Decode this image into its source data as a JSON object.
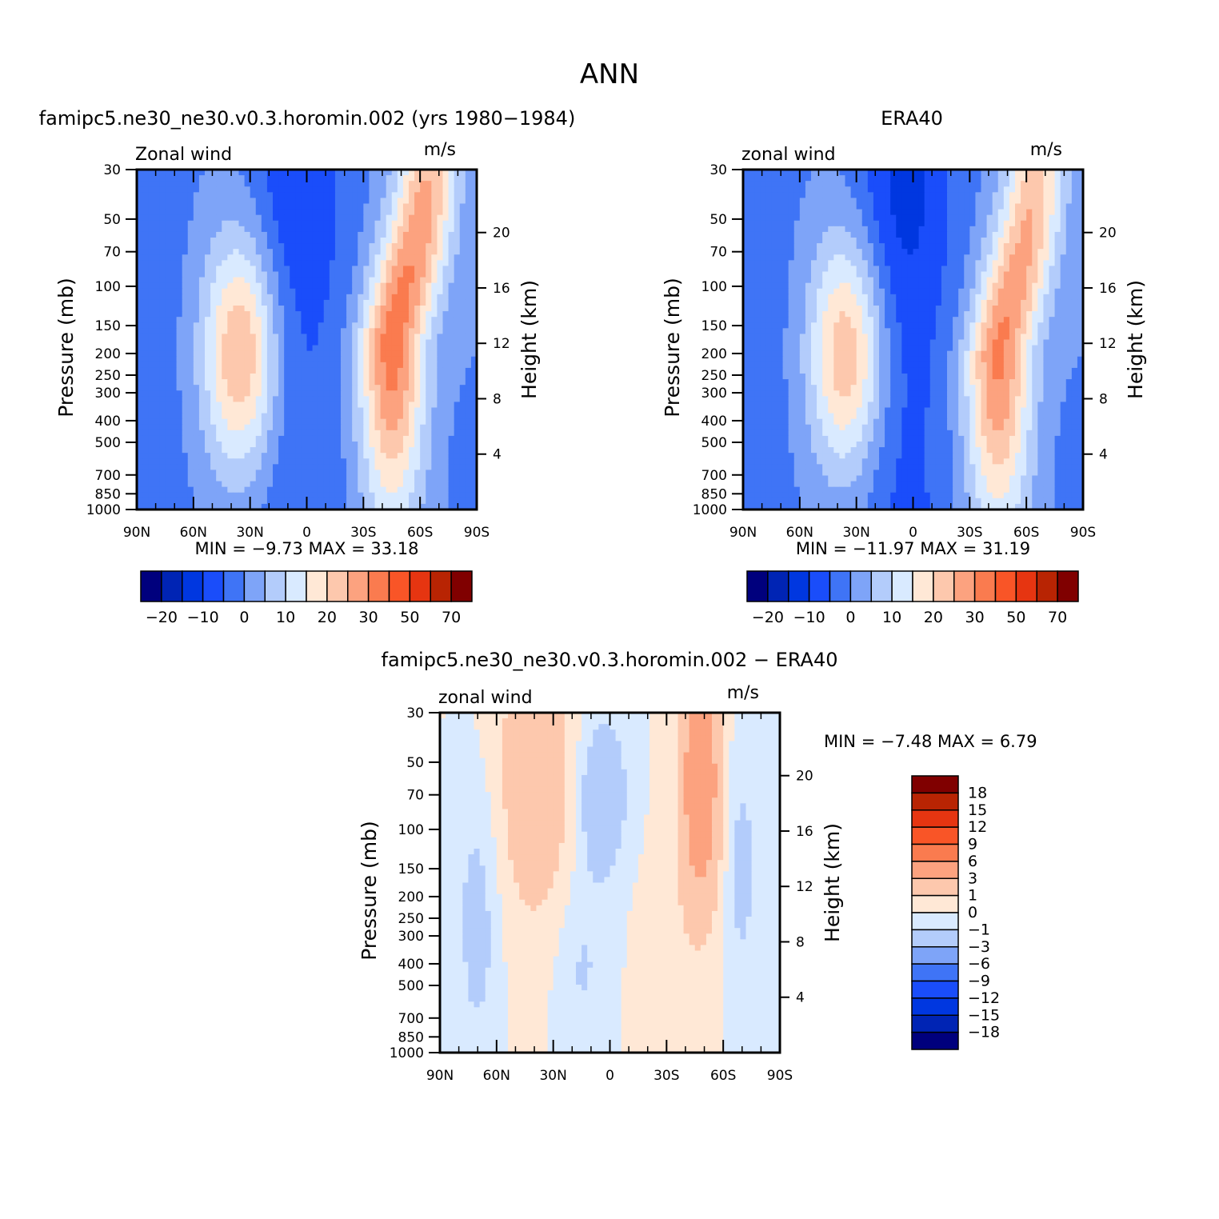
{
  "figure": {
    "title": "ANN"
  },
  "palette_main": [
    "#00007d",
    "#0024b4",
    "#0037e0",
    "#1a4dfa",
    "#3f74f6",
    "#7ea4f8",
    "#b3ccfb",
    "#d9eaff",
    "#ffe8d6",
    "#fdc8ad",
    "#fca27f",
    "#fa7b4f",
    "#f95527",
    "#e63511",
    "#b82403",
    "#800000"
  ],
  "palette_diff": [
    "#00007d",
    "#0024b4",
    "#0037e0",
    "#1a4dfa",
    "#3f74f6",
    "#7ea4f8",
    "#b3ccfb",
    "#d9eaff",
    "#ffe8d6",
    "#fdc8ad",
    "#fca27f",
    "#fa7b4f",
    "#f95527",
    "#e63511",
    "#b82403",
    "#800000"
  ],
  "chart_data": [
    {
      "type": "heatmap",
      "id": "model",
      "title": "famipc5.ne30_ne30.v0.3.horomin.002 (yrs 1980−1984)",
      "left_label": "Zonal wind",
      "units": "m/s",
      "ylabel": "Pressure (mb)",
      "ylabel_right": "Height (km)",
      "xlim": [
        90,
        -90
      ],
      "ylim": [
        1000,
        30
      ],
      "x_ticks": [
        "90N",
        "60N",
        "30N",
        "0",
        "30S",
        "60S",
        "90S"
      ],
      "y_ticks": [
        "30",
        "50",
        "70",
        "100",
        "150",
        "200",
        "250",
        "300",
        "400",
        "500",
        "700",
        "850",
        "1000"
      ],
      "height_ticks": [
        "20",
        "16",
        "12",
        "8",
        "4"
      ],
      "stats": "MIN =   −9.73   MAX =   33.18",
      "colorbar_labels": [
        "−20",
        "−10",
        "0",
        "10",
        "20",
        "30",
        "50",
        "70"
      ],
      "jets": [
        {
          "lat": 35,
          "p": 200,
          "max": 26
        },
        {
          "lat": -45,
          "p": 175,
          "max": 33
        }
      ],
      "easterly_min": -9.73
    },
    {
      "type": "heatmap",
      "id": "obs",
      "title": "ERA40",
      "left_label": "zonal wind",
      "units": "m/s",
      "ylabel": "Pressure (mb)",
      "ylabel_right": "Height (km)",
      "xlim": [
        90,
        -90
      ],
      "ylim": [
        1000,
        30
      ],
      "x_ticks": [
        "90N",
        "60N",
        "30N",
        "0",
        "30S",
        "60S",
        "90S"
      ],
      "y_ticks": [
        "30",
        "50",
        "70",
        "100",
        "150",
        "200",
        "250",
        "300",
        "400",
        "500",
        "700",
        "850",
        "1000"
      ],
      "height_ticks": [
        "20",
        "16",
        "12",
        "8",
        "4"
      ],
      "stats": "MIN =  −11.97   MAX =   31.19",
      "colorbar_labels": [
        "−20",
        "−10",
        "0",
        "10",
        "20",
        "30",
        "50",
        "70"
      ],
      "jets": [
        {
          "lat": 35,
          "p": 200,
          "max": 25
        },
        {
          "lat": -45,
          "p": 200,
          "max": 31
        }
      ],
      "easterly_min": -11.97
    },
    {
      "type": "heatmap",
      "id": "diff",
      "title": "famipc5.ne30_ne30.v0.3.horomin.002 − ERA40",
      "left_label": "zonal wind",
      "units": "m/s",
      "ylabel": "Pressure (mb)",
      "ylabel_right": "Height (km)",
      "xlim": [
        90,
        -90
      ],
      "ylim": [
        1000,
        30
      ],
      "x_ticks": [
        "90N",
        "60N",
        "30N",
        "0",
        "30S",
        "60S",
        "90S"
      ],
      "y_ticks": [
        "30",
        "50",
        "70",
        "100",
        "150",
        "200",
        "250",
        "300",
        "400",
        "500",
        "700",
        "850",
        "1000"
      ],
      "height_ticks": [
        "20",
        "16",
        "12",
        "8",
        "4"
      ],
      "stats": "MIN =   −7.48   MAX =    6.79",
      "colorbar_labels": [
        "18",
        "15",
        "12",
        "9",
        "6",
        "3",
        "1",
        "0",
        "−1",
        "−3",
        "−6",
        "−9",
        "−12",
        "−15",
        "−18"
      ]
    }
  ]
}
